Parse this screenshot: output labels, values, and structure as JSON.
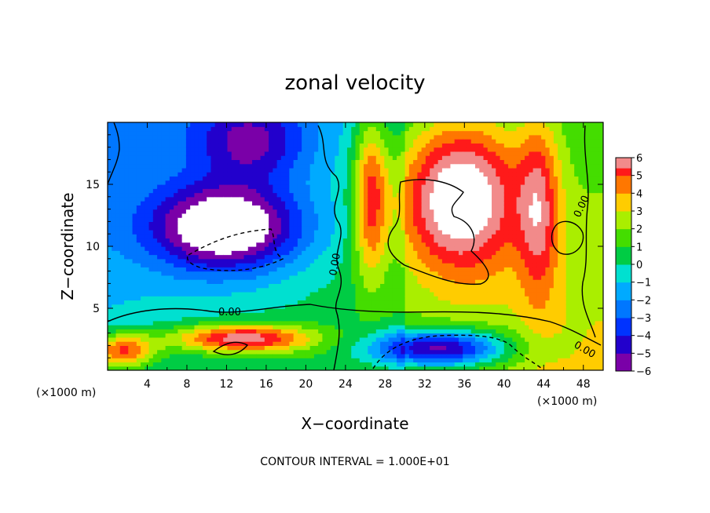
{
  "chart_data": {
    "type": "heatmap",
    "title": "zonal velocity",
    "xlabel": "X−coordinate",
    "ylabel": "Z−coordinate",
    "x_unit_label": "(×1000 m)",
    "x_unit_label_right": "(×1000 m)",
    "xlim": [
      0,
      50
    ],
    "ylim": [
      0,
      20
    ],
    "x_ticks": [
      4,
      8,
      12,
      16,
      20,
      24,
      28,
      32,
      36,
      40,
      44,
      48
    ],
    "x_tick_labels": [
      "4",
      "8",
      "12",
      "16",
      "20",
      "24",
      "28",
      "32",
      "36",
      "40",
      "44",
      "48"
    ],
    "y_ticks": [
      5,
      10,
      15
    ],
    "y_tick_labels": [
      "5",
      "10",
      "15"
    ],
    "contour_note": "CONTOUR INTERVAL = 1.000E+01",
    "contour_labels": [
      "0.00",
      "0.00",
      "0.00",
      "0.00"
    ],
    "colorbar": {
      "levels": [
        -6,
        -5,
        -4,
        -3,
        -2,
        -1,
        0,
        1,
        2,
        3,
        4,
        5,
        6
      ],
      "tick_labels": [
        "−6",
        "−5",
        "−4",
        "−3",
        "−2",
        "−1",
        "0",
        "1",
        "2",
        "3",
        "4",
        "5",
        "6"
      ],
      "colors": [
        "#7a00a8",
        "#2200cc",
        "#0033ff",
        "#0077ff",
        "#00aaff",
        "#00e0d0",
        "#00cc44",
        "#44dd00",
        "#aaee00",
        "#ffcc00",
        "#ff7700",
        "#ff1a1a",
        "#f28a8a"
      ]
    },
    "field_regions": [
      {
        "name": "upper-left-eddy",
        "kind": "ellipse",
        "cx": 12,
        "cy": 11.5,
        "rx": 7.8,
        "ry": 3.6,
        "value": -7.5
      },
      {
        "name": "upper-right-eddy",
        "kind": "ellipse",
        "cx": 35.5,
        "cy": 14.0,
        "rx": 6.5,
        "ry": 6.5,
        "value": 7.5
      },
      {
        "name": "lower-right-jet",
        "kind": "ellipse",
        "cx": 33.5,
        "cy": 1.8,
        "rx": 7.0,
        "ry": 1.6,
        "value": -7.5
      },
      {
        "name": "low-level-jet",
        "kind": "ellipse",
        "cx": 13.5,
        "cy": 2.6,
        "rx": 7.5,
        "ry": 1.2,
        "value": 6.5
      },
      {
        "name": "lower-left-positive",
        "kind": "ellipse",
        "cx": 1.5,
        "cy": 1.6,
        "rx": 3.5,
        "ry": 1.5,
        "value": 5.5
      },
      {
        "name": "top-blue-band",
        "kind": "ellipse",
        "cx": 14.5,
        "cy": 18.5,
        "rx": 6.0,
        "ry": 3.5,
        "value": -4.0
      },
      {
        "name": "right-red-band",
        "kind": "ellipse",
        "cx": 43.5,
        "cy": 13.0,
        "rx": 2.2,
        "ry": 8.0,
        "value": 4.0
      },
      {
        "name": "mid-red-column",
        "kind": "ellipse",
        "cx": 26.5,
        "cy": 14.0,
        "rx": 1.8,
        "ry": 7.0,
        "value": 5.0
      },
      {
        "name": "right-green-eddy",
        "kind": "ellipse",
        "cx": 46,
        "cy": 10.5,
        "rx": 1.8,
        "ry": 1.4,
        "value": 0.0
      }
    ]
  }
}
